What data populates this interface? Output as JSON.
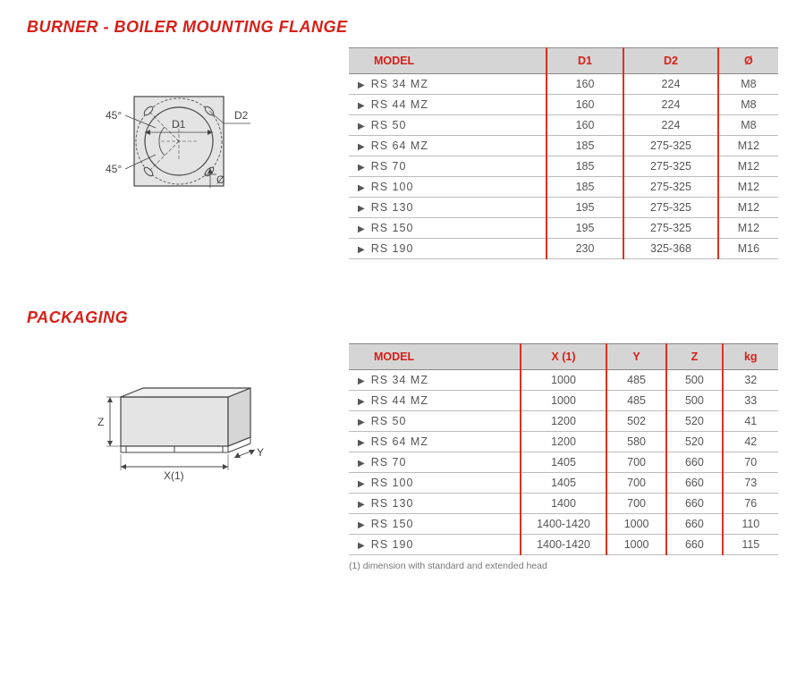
{
  "colors": {
    "heading": "#d62018",
    "table_header_bg": "#d5d5d5",
    "table_header_text": "#d62018",
    "border_red": "#e03020",
    "border_gray": "#bbbbbb",
    "text": "#555555",
    "diagram_fill": "#e4e4e4",
    "diagram_stroke": "#444444",
    "background": "#ffffff"
  },
  "typography": {
    "heading_fontsize": 18,
    "heading_weight": 800,
    "table_fontsize": 12.5,
    "footnote_fontsize": 10.5
  },
  "section1": {
    "title": "BURNER - BOILER MOUNTING FLANGE",
    "diagram": {
      "type": "technical-drawing",
      "labels": {
        "angle_top": "45°",
        "angle_bottom": "45°",
        "d1": "D1",
        "d2": "D2",
        "phi": "Ø"
      }
    },
    "table": {
      "type": "table",
      "columns": [
        "MODEL",
        "D1",
        "D2",
        "Ø"
      ],
      "col_widths_pct": [
        46,
        18,
        22,
        14
      ],
      "rows": [
        [
          "RS 34 MZ",
          "160",
          "224",
          "M8"
        ],
        [
          "RS 44 MZ",
          "160",
          "224",
          "M8"
        ],
        [
          "RS 50",
          "160",
          "224",
          "M8"
        ],
        [
          "RS 64 MZ",
          "185",
          "275-325",
          "M12"
        ],
        [
          "RS 70",
          "185",
          "275-325",
          "M12"
        ],
        [
          "RS 100",
          "185",
          "275-325",
          "M12"
        ],
        [
          "RS 130",
          "195",
          "275-325",
          "M12"
        ],
        [
          "RS 150",
          "195",
          "275-325",
          "M12"
        ],
        [
          "RS 190",
          "230",
          "325-368",
          "M16"
        ]
      ]
    }
  },
  "section2": {
    "title": "PACKAGING",
    "diagram": {
      "type": "isometric-box",
      "labels": {
        "x": "X(1)",
        "y": "Y",
        "z": "Z"
      }
    },
    "table": {
      "type": "table",
      "columns": [
        "MODEL",
        "X (1)",
        "Y",
        "Z",
        "kg"
      ],
      "col_widths_pct": [
        40,
        20,
        14,
        13,
        13
      ],
      "rows": [
        [
          "RS 34 MZ",
          "1000",
          "485",
          "500",
          "32"
        ],
        [
          "RS 44 MZ",
          "1000",
          "485",
          "500",
          "33"
        ],
        [
          "RS 50",
          "1200",
          "502",
          "520",
          "41"
        ],
        [
          "RS 64 MZ",
          "1200",
          "580",
          "520",
          "42"
        ],
        [
          "RS 70",
          "1405",
          "700",
          "660",
          "70"
        ],
        [
          "RS 100",
          "1405",
          "700",
          "660",
          "73"
        ],
        [
          "RS 130",
          "1400",
          "700",
          "660",
          "76"
        ],
        [
          "RS 150",
          "1400-1420",
          "1000",
          "660",
          "110"
        ],
        [
          "RS 190",
          "1400-1420",
          "1000",
          "660",
          "115"
        ]
      ],
      "footnote": "(1) dimension with standard and extended head"
    }
  }
}
